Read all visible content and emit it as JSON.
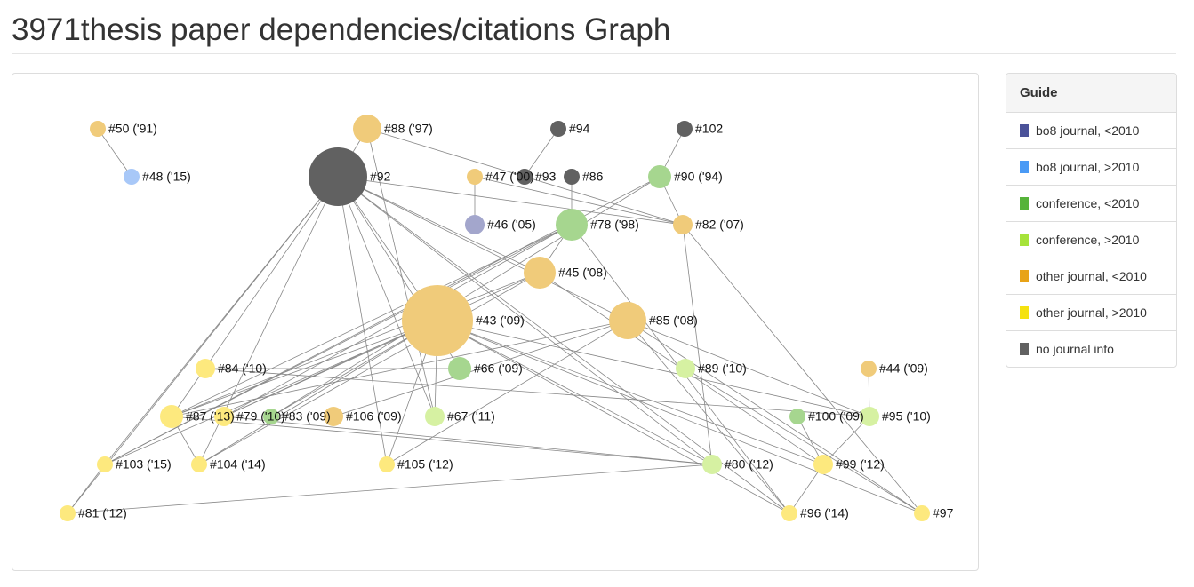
{
  "header": {
    "title": "3971thesis paper dependencies/citations Graph"
  },
  "guide": {
    "title": "Guide",
    "items": [
      {
        "label": "bo8 journal, <2010",
        "color": "#4b5299"
      },
      {
        "label": "bo8 journal, >2010",
        "color": "#4a9af5"
      },
      {
        "label": "conference, <2010",
        "color": "#56b33a"
      },
      {
        "label": "conference, >2010",
        "color": "#a6e33a"
      },
      {
        "label": "other journal, <2010",
        "color": "#e8a317"
      },
      {
        "label": "other journal, >2010",
        "color": "#f5e20f"
      },
      {
        "label": "no journal info",
        "color": "#616161"
      }
    ]
  },
  "nodes": [
    {
      "label": "#50 ('91)"
    },
    {
      "label": "#48 ('15)"
    },
    {
      "label": "#88 ('97)"
    },
    {
      "label": "#92"
    },
    {
      "label": "#94"
    },
    {
      "label": "#102"
    },
    {
      "label": "#47 ('00)"
    },
    {
      "label": "#93"
    },
    {
      "label": "#86"
    },
    {
      "label": "#90 ('94)"
    },
    {
      "label": "#46 ('05)"
    },
    {
      "label": "#78 ('98)"
    },
    {
      "label": "#82 ('07)"
    },
    {
      "label": "#45 ('08)"
    },
    {
      "label": "#43 ('09)"
    },
    {
      "label": "#85 ('08)"
    },
    {
      "label": "#84 ('10)"
    },
    {
      "label": "#66 ('09)"
    },
    {
      "label": "#89 ('10)"
    },
    {
      "label": "#44 ('09)"
    },
    {
      "label": "#87 ('13)"
    },
    {
      "label": "#79 ('10)"
    },
    {
      "label": "#83 ('09)"
    },
    {
      "label": "#106 ('09)"
    },
    {
      "label": "#67 ('11)"
    },
    {
      "label": "#100 ('09)"
    },
    {
      "label": "#95 ('10)"
    },
    {
      "label": "#103 ('15)"
    },
    {
      "label": "#104 ('14)"
    },
    {
      "label": "#105 ('12)"
    },
    {
      "label": "#80 ('12)"
    },
    {
      "label": "#99 ('12)"
    },
    {
      "label": "#81 ('12)"
    },
    {
      "label": "#96 ('14)"
    },
    {
      "label": "#97"
    }
  ]
}
